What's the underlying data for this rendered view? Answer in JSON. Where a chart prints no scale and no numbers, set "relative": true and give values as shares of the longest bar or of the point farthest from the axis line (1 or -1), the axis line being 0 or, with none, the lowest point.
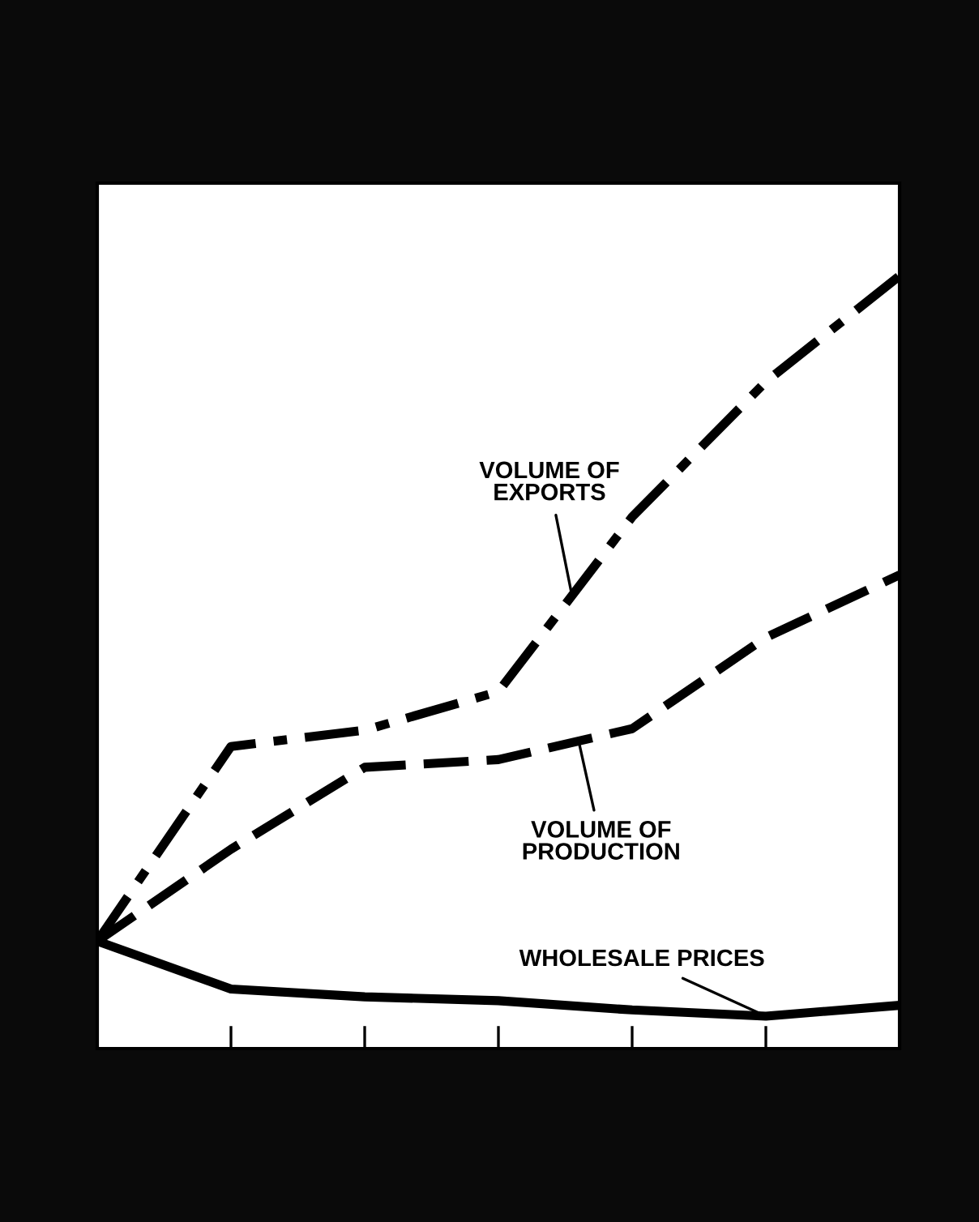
{
  "chart_data": {
    "type": "line",
    "relative": true,
    "grid": false,
    "legend": false,
    "categories": [
      null,
      null,
      null,
      null,
      null,
      null,
      null
    ],
    "series": [
      {
        "name": "VOLUME OF\nEXPORTS",
        "color": "#000000",
        "line_style": "dashdot",
        "values": [
          0.139,
          0.391,
          0.412,
          0.462,
          0.688,
          0.863,
          1.0
        ]
      },
      {
        "name": "VOLUME OF\nPRODUCTION",
        "color": "#000000",
        "line_style": "dashed",
        "values": [
          0.139,
          0.258,
          0.364,
          0.374,
          0.414,
          0.532,
          0.613
        ]
      },
      {
        "name": "WHOLESALE PRICES",
        "color": "#000000",
        "line_style": "solid",
        "values": [
          0.139,
          0.077,
          0.067,
          0.062,
          0.05,
          0.042,
          0.056
        ]
      }
    ]
  }
}
